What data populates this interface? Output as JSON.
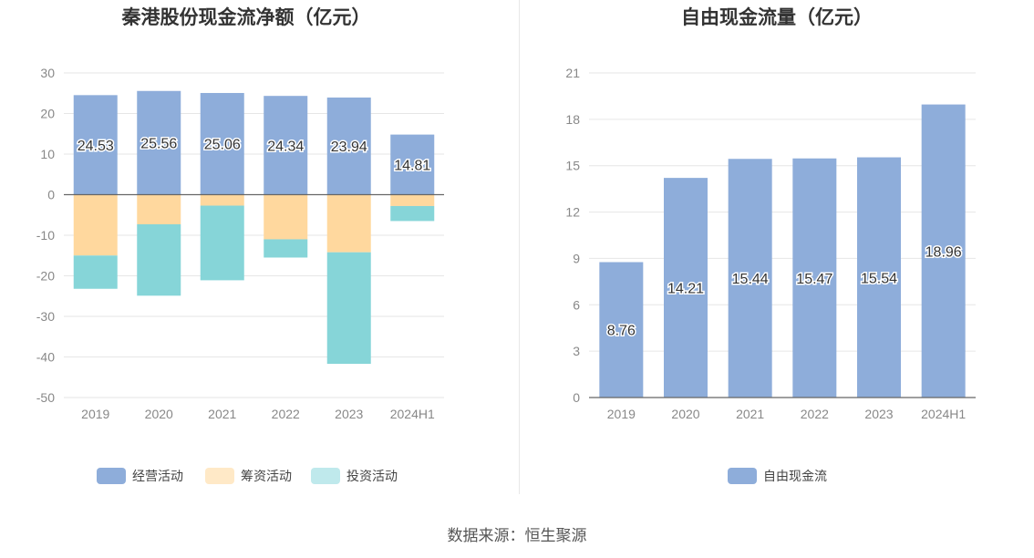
{
  "colors": {
    "operating": "#8EADDA",
    "financing": "#FFD89E",
    "investing": "#86D5D8",
    "free_cash_flow": "#8EADDA",
    "financing_legend": "#FFE9C7",
    "investing_legend": "#BFE9EC",
    "title": "#333333",
    "axis_text": "#888888",
    "grid": "#e6e6e6"
  },
  "chart_data": [
    {
      "type": "bar",
      "stacked": true,
      "title": "秦港股份现金流净额（亿元）",
      "categories": [
        "2019",
        "2020",
        "2021",
        "2022",
        "2023",
        "2024H1"
      ],
      "ylim": [
        -50,
        30
      ],
      "yticks": [
        30,
        20,
        10,
        0,
        -10,
        -20,
        -30,
        -40,
        -50
      ],
      "grid": true,
      "legend_position": "bottom",
      "series": [
        {
          "name": "经营活动",
          "key": "operating",
          "values": [
            24.53,
            25.56,
            25.06,
            24.34,
            23.94,
            14.81
          ],
          "labels": [
            "24.53",
            "25.56",
            "25.06",
            "24.34",
            "23.94",
            "14.81"
          ]
        },
        {
          "name": "筹资活动",
          "key": "financing",
          "values": [
            -15.0,
            -7.3,
            -2.7,
            -11.0,
            -14.2,
            -2.8
          ]
        },
        {
          "name": "投资活动",
          "key": "investing",
          "values": [
            -8.2,
            -17.6,
            -18.4,
            -4.5,
            -27.5,
            -3.7
          ]
        }
      ]
    },
    {
      "type": "bar",
      "title": "自由现金流量（亿元）",
      "categories": [
        "2019",
        "2020",
        "2021",
        "2022",
        "2023",
        "2024H1"
      ],
      "ylim": [
        0,
        21
      ],
      "yticks": [
        21,
        18,
        15,
        12,
        9,
        6,
        3,
        0
      ],
      "grid": true,
      "legend_position": "bottom",
      "series": [
        {
          "name": "自由现金流",
          "key": "free_cash_flow",
          "values": [
            8.76,
            14.21,
            15.44,
            15.47,
            15.54,
            18.96
          ],
          "labels": [
            "8.76",
            "14.21",
            "15.44",
            "15.47",
            "15.54",
            "18.96"
          ]
        }
      ]
    }
  ],
  "source_text": "数据来源：恒生聚源"
}
